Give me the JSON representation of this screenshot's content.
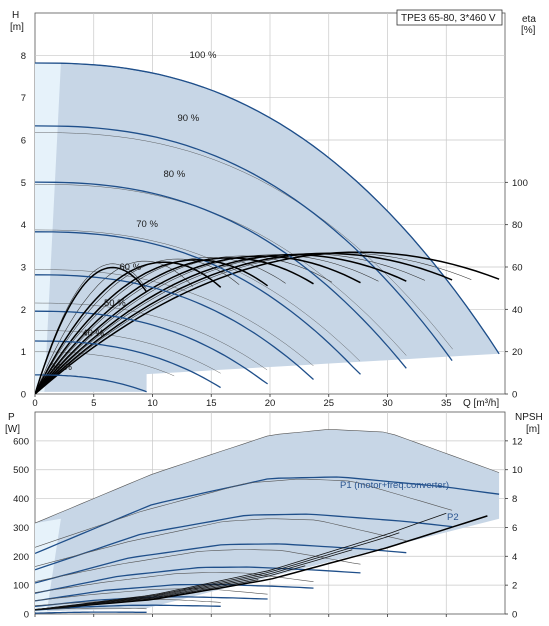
{
  "chart_data": [
    {
      "type": "line",
      "title_box": "TPE3 65-80, 3*460 V",
      "y_left_label": [
        "H",
        "[m]"
      ],
      "y_right_label": [
        "eta",
        "[%]"
      ],
      "x_label": "Q [m³/h]",
      "xlim": [
        0,
        40
      ],
      "ylim_left": [
        0,
        9
      ],
      "ylim_right": [
        0,
        180
      ],
      "x_ticks": [
        0,
        5,
        10,
        15,
        20,
        25,
        30,
        35
      ],
      "y_left_ticks": [
        0,
        1,
        2,
        3,
        4,
        5,
        6,
        7,
        8
      ],
      "y_right_ticks": [
        0,
        20,
        40,
        60,
        80,
        100
      ],
      "speed_curves": [
        {
          "name": "100 %",
          "speed": 1.0,
          "q_max": 39.5
        },
        {
          "name": "90 %",
          "speed": 0.9,
          "q_max": 35.5
        },
        {
          "name": "80 %",
          "speed": 0.8,
          "q_max": 31.6
        },
        {
          "name": "70 %",
          "speed": 0.7,
          "q_max": 27.7
        },
        {
          "name": "60 %",
          "speed": 0.6,
          "q_max": 23.7
        },
        {
          "name": "50 %",
          "speed": 0.5,
          "q_max": 19.8
        },
        {
          "name": "40 %",
          "speed": 0.4,
          "q_max": 15.8
        },
        {
          "name": "24 %",
          "speed": 0.24,
          "q_max": 9.5
        }
      ],
      "head_at_zero_flow_100": 7.82,
      "eta_peak_100": {
        "q": 27.5,
        "eta": 67
      }
    },
    {
      "type": "line",
      "y_left_label": [
        "P",
        "[W]"
      ],
      "y_right_label": [
        "NPSH",
        "[m]"
      ],
      "xlim": [
        0,
        40
      ],
      "ylim_left": [
        0,
        700
      ],
      "ylim_right": [
        0,
        14
      ],
      "y_left_ticks": [
        0,
        100,
        200,
        300,
        400,
        500,
        600
      ],
      "y_right_ticks": [
        0,
        2,
        4,
        6,
        8,
        10,
        12
      ],
      "series_labels": {
        "p1": "P1 (motor+freq.converter)",
        "p2": "P2"
      },
      "p1_100": {
        "q": [
          0,
          10,
          20,
          25,
          30,
          39.5
        ],
        "p": [
          315,
          485,
          620,
          640,
          630,
          490
        ]
      },
      "p2_100": {
        "q": [
          0,
          10,
          20,
          26,
          35,
          39.5
        ],
        "p": [
          210,
          380,
          470,
          475,
          440,
          415
        ]
      },
      "npsh": {
        "q": [
          0,
          10,
          20,
          30,
          38.5
        ],
        "h": [
          0.3,
          1.0,
          2.4,
          4.6,
          6.8
        ]
      }
    }
  ]
}
